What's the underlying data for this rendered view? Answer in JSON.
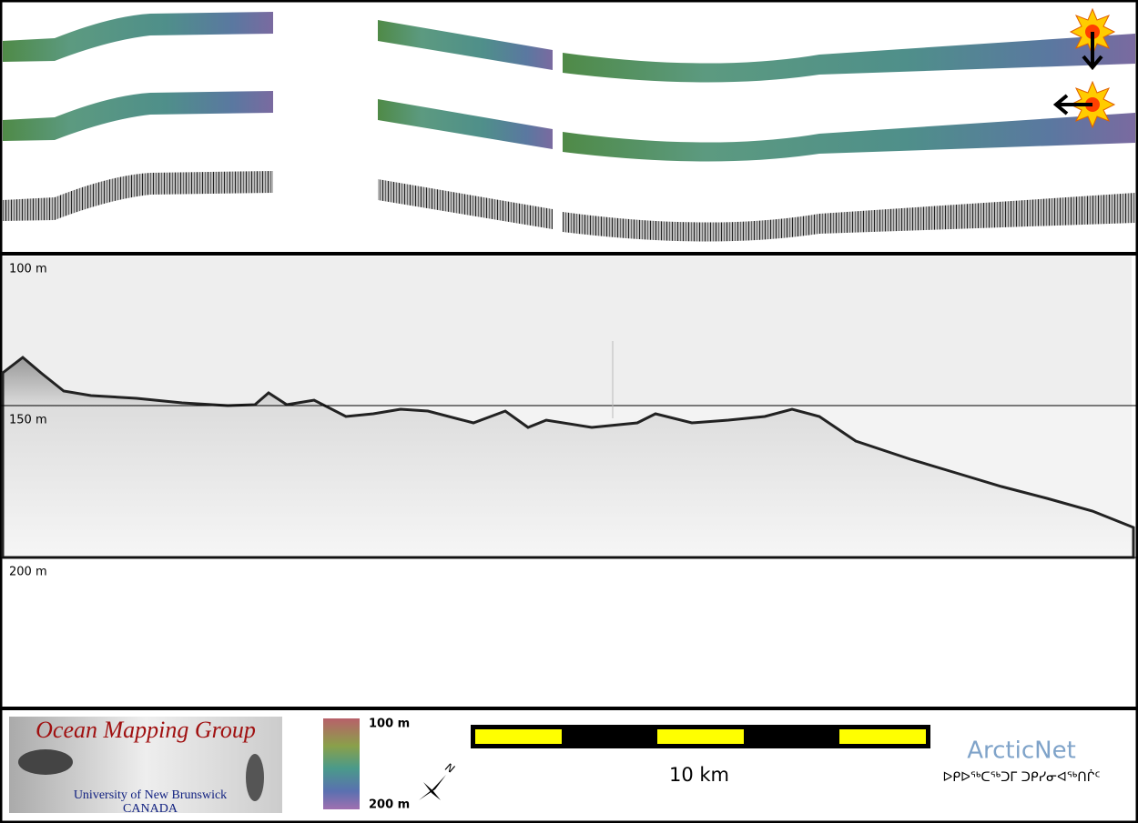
{
  "depth_labels": [
    "100 m",
    "150 m",
    "200 m"
  ],
  "logo": {
    "title": "Ocean Mapping Group",
    "line1": "University of New Brunswick",
    "line2": "CANADA"
  },
  "colorbar": {
    "top": "100 m",
    "bottom": "200 m"
  },
  "compass": "N",
  "scale_bar": "10 km",
  "arcticnet": {
    "name": "ArcticNet",
    "syllabics": "ᐅᑭᐅᖅᑕᖅᑐᒥ ᑐᑭᓯᓂᐊᖅᑎᒌᑦ"
  }
}
